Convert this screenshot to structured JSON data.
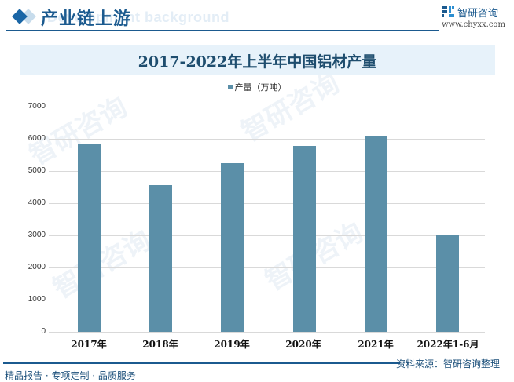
{
  "header": {
    "section_title": "产业链上游",
    "background_ghost_text": "Development background",
    "brand_name": "智研咨询",
    "brand_url": "www.chyxx.com",
    "icon": "brand-logo-icon"
  },
  "chart": {
    "title": "2017-2022年上半年中国铝材产量",
    "legend_label": "产量（万吨）",
    "bar_color": "#5b8fa8",
    "y_ticks": [
      "7000",
      "6000",
      "5000",
      "4000",
      "3000",
      "2000",
      "1000",
      "0"
    ],
    "x_labels": [
      "2017年",
      "2018年",
      "2019年",
      "2020年",
      "2021年",
      "2022年1-6月"
    ]
  },
  "chart_data": {
    "type": "bar",
    "title": "2017-2022年上半年中国铝材产量",
    "categories": [
      "2017年",
      "2018年",
      "2019年",
      "2020年",
      "2021年",
      "2022年1-6月"
    ],
    "series": [
      {
        "name": "产量（万吨）",
        "values": [
          5830,
          4560,
          5240,
          5780,
          6100,
          3000
        ]
      }
    ],
    "xlabel": "",
    "ylabel": "",
    "ylim": [
      0,
      7000
    ],
    "yticks": [
      0,
      1000,
      2000,
      3000,
      4000,
      5000,
      6000,
      7000
    ],
    "grid": true,
    "legend_position": "top"
  },
  "footer": {
    "source": "资料来源：智研咨询整理",
    "slogan": "精品报告 · 专项定制 · 品质服务"
  },
  "watermark": "智研咨询"
}
